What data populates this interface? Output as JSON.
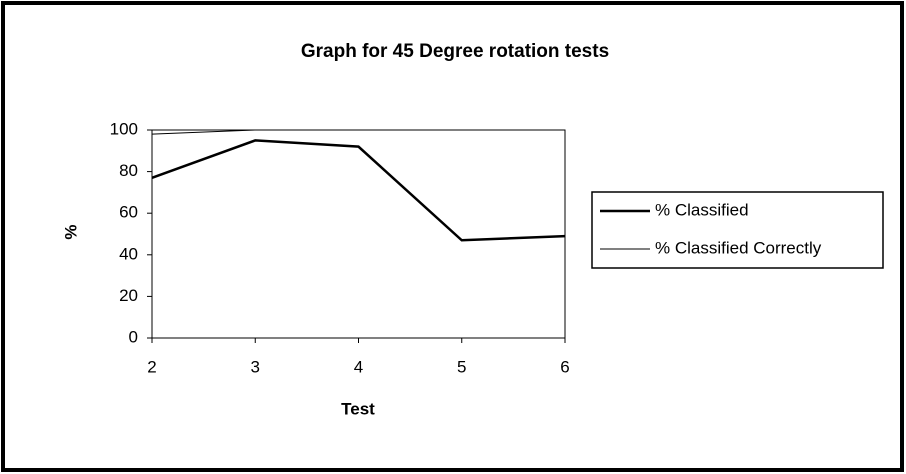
{
  "chart_data": {
    "type": "line",
    "title": "Graph for 45 Degree rotation tests",
    "x_label": "Test",
    "y_label": "%",
    "x": [
      2,
      3,
      4,
      5,
      6
    ],
    "series": [
      {
        "name": "% Classified",
        "color": "#000000",
        "values": [
          77,
          95,
          92,
          47,
          49
        ]
      },
      {
        "name": "% Classified Correctly",
        "color": "#000000",
        "values": [
          98,
          100,
          100,
          100,
          100
        ]
      }
    ],
    "xlim": [
      2,
      6
    ],
    "xticks": [
      2,
      3,
      4,
      5,
      6
    ],
    "ylim": [
      0,
      100
    ],
    "yticks": [
      0,
      20,
      40,
      60,
      80,
      100
    ],
    "legend": "right"
  }
}
